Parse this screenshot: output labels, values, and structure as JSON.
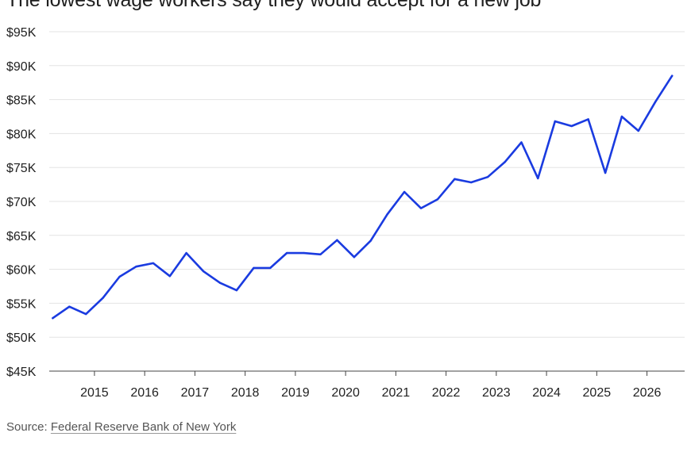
{
  "chart_data": {
    "type": "line",
    "title": "The lowest wage workers say they would accept for a new job",
    "xlabel": "",
    "ylabel": "",
    "ylim": [
      45,
      95
    ],
    "xlim": [
      2014.1,
      2026.75
    ],
    "yticks": [
      45,
      50,
      55,
      60,
      65,
      70,
      75,
      80,
      85,
      90,
      95
    ],
    "ytick_labels": [
      "$45K",
      "$50K",
      "$55K",
      "$60K",
      "$65K",
      "$70K",
      "$75K",
      "$80K",
      "$85K",
      "$90K",
      "$95K"
    ],
    "xticks": [
      2015,
      2016,
      2017,
      2018,
      2019,
      2020,
      2021,
      2022,
      2023,
      2024,
      2025,
      2026
    ],
    "xtick_labels": [
      "2015",
      "2016",
      "2017",
      "2018",
      "2019",
      "2020",
      "2021",
      "2022",
      "2023",
      "2024",
      "2025",
      "2026"
    ],
    "grid": true,
    "line_color": "#1a3be0",
    "x": [
      2014.17,
      2014.5,
      2014.83,
      2015.17,
      2015.5,
      2015.83,
      2016.17,
      2016.5,
      2016.83,
      2017.17,
      2017.5,
      2017.83,
      2018.17,
      2018.5,
      2018.83,
      2019.17,
      2019.5,
      2019.83,
      2020.17,
      2020.5,
      2020.83,
      2021.17,
      2021.5,
      2021.83,
      2022.17,
      2022.5,
      2022.83,
      2023.17,
      2023.5,
      2023.83,
      2024.17,
      2024.5,
      2024.83,
      2025.17,
      2025.5,
      2025.83,
      2026.17,
      2026.5
    ],
    "y": [
      52.8,
      54.5,
      53.4,
      55.8,
      58.9,
      60.4,
      60.9,
      59.0,
      62.4,
      59.7,
      58.0,
      56.9,
      60.2,
      60.2,
      62.4,
      62.4,
      62.2,
      64.3,
      61.8,
      64.2,
      68.1,
      71.4,
      69.0,
      70.3,
      73.3,
      72.8,
      73.6,
      75.8,
      78.7,
      73.4,
      81.8,
      81.1,
      82.1,
      74.2,
      82.5,
      80.4,
      84.7,
      88.5
    ]
  },
  "source": {
    "prefix": "Source: ",
    "link_text": "Federal Reserve Bank of New York"
  }
}
